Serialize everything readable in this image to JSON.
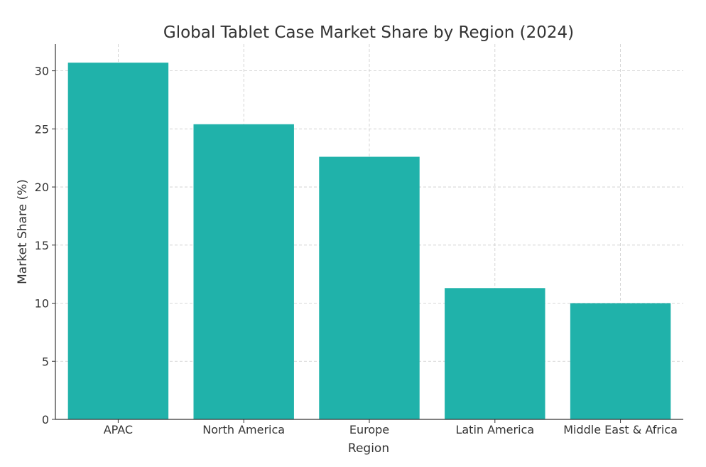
{
  "chart_data": {
    "type": "bar",
    "title": "Global Tablet Case Market Share by Region (2024)",
    "xlabel": "Region",
    "ylabel": "Market Share (%)",
    "categories": [
      "APAC",
      "North America",
      "Europe",
      "Latin America",
      "Middle East & Africa"
    ],
    "values": [
      30.7,
      25.4,
      22.6,
      11.3,
      10.0
    ],
    "ylim": [
      0,
      32.3
    ],
    "yticks": [
      0,
      5,
      10,
      15,
      20,
      25,
      30
    ],
    "grid": true,
    "bar_color": "#20b2aa",
    "legend": null
  }
}
